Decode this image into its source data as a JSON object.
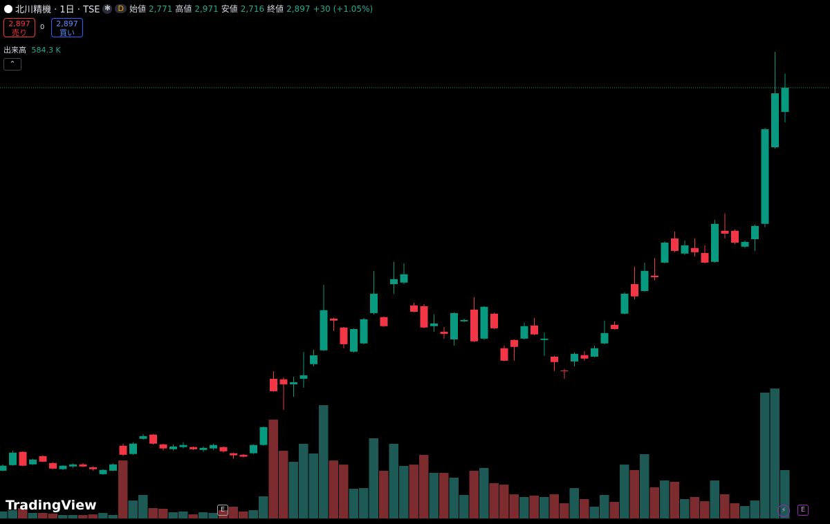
{
  "header": {
    "symbol": "北川精機 · 1日 · TSE",
    "interval_badge": "D",
    "open_label": "始値",
    "open": "2,771",
    "high_label": "高値",
    "high": "2,971",
    "low_label": "安値",
    "low": "2,716",
    "close_label": "終値",
    "close": "2,897",
    "change": "+30 (+1.05%)"
  },
  "trade": {
    "sell_price": "2,897",
    "sell_label": "売り",
    "spread": "0",
    "buy_price": "2,897",
    "buy_label": "買い"
  },
  "volume_indicator": {
    "label": "出来高",
    "value": "584.3 K"
  },
  "branding": "TradingView",
  "markers": [
    "E",
    "E"
  ],
  "chart_data": {
    "type": "candlestick",
    "up_color": "#089981",
    "down_color": "#f23645",
    "volume_up_color": "#1d5a56",
    "volume_down_color": "#7c2b2e",
    "open": [
      902,
      931,
      1000,
      935,
      978,
      942,
      910,
      924,
      935,
      920,
      884,
      902,
      1032,
      989,
      1068,
      1090,
      1039,
      1014,
      1025,
      1025,
      1010,
      1018,
      1025,
      993,
      985,
      993,
      1036,
      1381,
      1378,
      1352,
      1381,
      1457,
      1529,
      1694,
      1648,
      1522,
      1565,
      1723,
      1702,
      1874,
      1882,
      1763,
      1759,
      1655,
      1626,
      1586,
      1680,
      1741,
      1590,
      1720,
      1540,
      1583,
      1590,
      1658,
      1583,
      1496,
      1424,
      1471,
      1504,
      1496,
      1565,
      1662,
      1720,
      1874,
      1838,
      1918,
      1986,
      2112,
      2033,
      2062,
      2036,
      1990,
      2152,
      2152,
      2069,
      2108,
      2188,
      2587,
      2771
    ],
    "high": [
      935,
      1007,
      1003,
      964,
      982,
      946,
      931,
      939,
      942,
      924,
      910,
      939,
      1043,
      1050,
      1093,
      1093,
      1043,
      1039,
      1050,
      1028,
      1028,
      1043,
      1028,
      996,
      989,
      1039,
      1133,
      1420,
      1388,
      1392,
      1521,
      1532,
      1871,
      1698,
      1651,
      1644,
      1698,
      1943,
      1705,
      1990,
      1982,
      1777,
      1770,
      1716,
      1651,
      1727,
      1694,
      1806,
      1759,
      1724,
      1554,
      1586,
      1673,
      1698,
      1622,
      1500,
      1432,
      1518,
      1525,
      1554,
      1684,
      1680,
      1831,
      1964,
      1986,
      2011,
      2097,
      2148,
      2101,
      2112,
      2076,
      2208,
      2242,
      2159,
      2101,
      2184,
      2688,
      3084,
      2971
    ],
    "low": [
      899,
      928,
      925,
      932,
      946,
      910,
      906,
      917,
      920,
      902,
      880,
      899,
      978,
      985,
      1064,
      1039,
      1007,
      1007,
      1018,
      1010,
      1000,
      1010,
      996,
      964,
      971,
      989,
      1032,
      1313,
      1219,
      1287,
      1334,
      1446,
      1525,
      1630,
      1540,
      1518,
      1561,
      1716,
      1651,
      1824,
      1874,
      1727,
      1644,
      1626,
      1590,
      1554,
      1676,
      1572,
      1583,
      1640,
      1472,
      1475,
      1586,
      1608,
      1500,
      1421,
      1381,
      1446,
      1475,
      1493,
      1561,
      1637,
      1716,
      1795,
      1835,
      1893,
      1982,
      2040,
      2026,
      2018,
      1982,
      1986,
      2112,
      2083,
      2062,
      2047,
      2170,
      2580,
      2716
    ],
    "close": [
      928,
      996,
      928,
      960,
      949,
      913,
      928,
      935,
      924,
      910,
      906,
      935,
      985,
      1043,
      1082,
      1043,
      1018,
      1028,
      1036,
      1014,
      1021,
      1036,
      1003,
      982,
      975,
      1036,
      1129,
      1316,
      1352,
      1363,
      1399,
      1503,
      1738,
      1684,
      1561,
      1640,
      1691,
      1824,
      1655,
      1900,
      1925,
      1730,
      1648,
      1669,
      1615,
      1723,
      1687,
      1576,
      1756,
      1644,
      1475,
      1547,
      1655,
      1612,
      1590,
      1468,
      1421,
      1511,
      1486,
      1540,
      1619,
      1640,
      1824,
      1810,
      1943,
      1910,
      2090,
      2047,
      2076,
      2040,
      1986,
      2188,
      2137,
      2090,
      2094,
      2177,
      2681,
      2868,
      2897
    ],
    "volume": [
      84,
      100,
      125,
      67,
      67,
      58,
      42,
      42,
      42,
      50,
      67,
      42,
      701,
      217,
      284,
      125,
      117,
      75,
      84,
      50,
      75,
      67,
      100,
      142,
      84,
      100,
      267,
      1194,
      818,
      685,
      902,
      785,
      1369,
      701,
      651,
      359,
      367,
      969,
      576,
      902,
      635,
      651,
      768,
      551,
      551,
      493,
      284,
      576,
      610,
      426,
      409,
      292,
      259,
      276,
      259,
      292,
      184,
      367,
      234,
      142,
      284,
      200,
      651,
      585,
      777,
      376,
      459,
      443,
      234,
      259,
      209,
      459,
      292,
      184,
      150,
      217,
      1520,
      1570,
      584.3
    ]
  }
}
